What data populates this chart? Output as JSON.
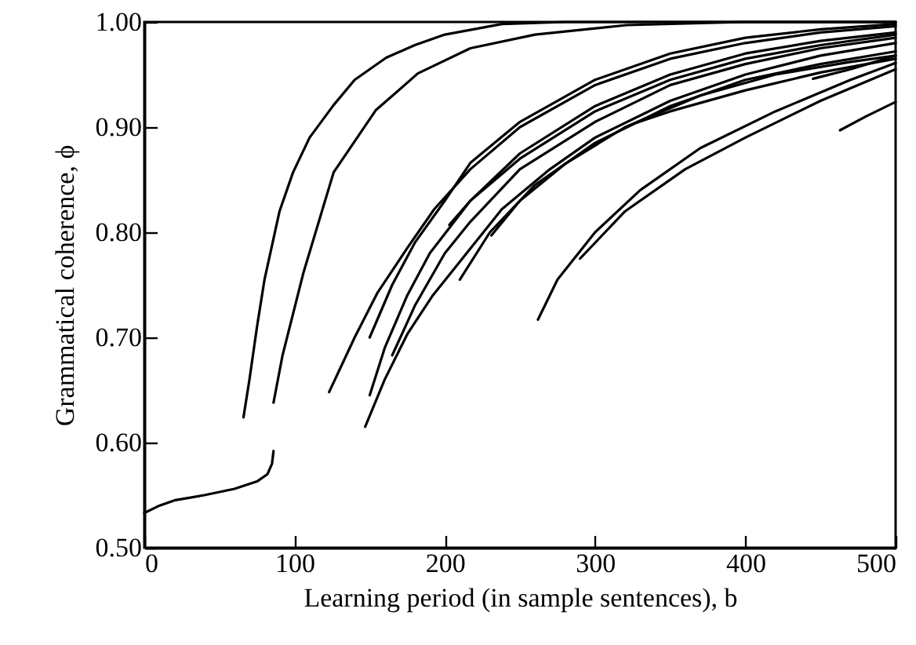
{
  "chart_data": {
    "type": "line",
    "xlabel": "Learning period (in sample sentences), b",
    "ylabel": "Grammatical coherence, ϕ",
    "xlim": [
      0,
      500
    ],
    "xticks": [
      0,
      100,
      200,
      300,
      400,
      500
    ],
    "ylim": [
      0.5,
      1.0
    ],
    "yticks": [
      {
        "value": 0.5,
        "label": "0.50"
      },
      {
        "value": 0.6,
        "label": "0.60"
      },
      {
        "value": 0.7,
        "label": "0.70"
      },
      {
        "value": 0.8,
        "label": "0.80"
      },
      {
        "value": 0.9,
        "label": "0.90"
      },
      {
        "value": 1.0,
        "label": "1.00"
      }
    ],
    "series": [
      {
        "color": "#000000",
        "x": [
          0,
          10,
          20,
          40,
          60,
          75,
          82,
          85,
          86
        ],
        "values": [
          0.533,
          0.54,
          0.545,
          0.55,
          0.556,
          0.563,
          0.57,
          0.58,
          0.592
        ]
      },
      {
        "color": "#000000",
        "x": [
          66,
          70,
          75,
          80,
          90,
          99,
          110,
          126,
          140,
          161,
          180,
          200,
          238,
          280,
          500
        ],
        "values": [
          0.624,
          0.66,
          0.71,
          0.755,
          0.82,
          0.857,
          0.89,
          0.921,
          0.945,
          0.966,
          0.978,
          0.988,
          0.998,
          1.0,
          1.0
        ]
      },
      {
        "color": "#000000",
        "x": [
          86,
          92,
          106,
          126,
          154,
          182,
          217,
          260,
          321,
          400,
          500
        ],
        "values": [
          0.638,
          0.683,
          0.762,
          0.857,
          0.916,
          0.951,
          0.975,
          0.988,
          0.997,
          1.0,
          1.0
        ]
      },
      {
        "color": "#000000",
        "x": [
          123,
          140,
          155,
          175,
          193,
          217,
          250,
          300,
          350,
          400,
          450,
          500
        ],
        "values": [
          0.648,
          0.7,
          0.742,
          0.785,
          0.822,
          0.86,
          0.9,
          0.94,
          0.965,
          0.98,
          0.99,
          0.996
        ]
      },
      {
        "color": "#000000",
        "x": [
          147,
          160,
          175,
          192,
          210,
          238,
          270,
          300,
          350,
          400,
          450,
          500
        ],
        "values": [
          0.615,
          0.66,
          0.703,
          0.74,
          0.772,
          0.822,
          0.86,
          0.89,
          0.925,
          0.95,
          0.968,
          0.98
        ]
      },
      {
        "color": "#000000",
        "x": [
          150,
          165,
          180,
          200,
          217,
          250,
          300,
          350,
          400,
          450,
          500
        ],
        "values": [
          0.7,
          0.75,
          0.79,
          0.83,
          0.866,
          0.905,
          0.945,
          0.97,
          0.985,
          0.993,
          0.998
        ]
      },
      {
        "color": "#000000",
        "x": [
          150,
          160,
          175,
          190,
          217,
          250,
          300,
          350,
          400,
          450,
          500
        ],
        "values": [
          0.645,
          0.69,
          0.74,
          0.78,
          0.83,
          0.875,
          0.92,
          0.95,
          0.97,
          0.982,
          0.99
        ]
      },
      {
        "color": "#000000",
        "x": [
          165,
          180,
          200,
          217,
          250,
          300,
          350,
          400,
          450,
          500
        ],
        "values": [
          0.683,
          0.73,
          0.78,
          0.81,
          0.86,
          0.905,
          0.94,
          0.96,
          0.975,
          0.985
        ]
      },
      {
        "color": "#000000",
        "x": [
          203,
          217,
          250,
          300,
          350,
          400,
          450,
          500
        ],
        "values": [
          0.807,
          0.83,
          0.87,
          0.915,
          0.945,
          0.965,
          0.978,
          0.988
        ]
      },
      {
        "color": "#000000",
        "x": [
          210,
          230,
          260,
          300,
          350,
          400,
          450,
          500
        ],
        "values": [
          0.755,
          0.8,
          0.845,
          0.885,
          0.92,
          0.945,
          0.96,
          0.972
        ]
      },
      {
        "color": "#000000",
        "x": [
          231,
          250,
          280,
          320,
          370,
          420,
          470,
          500
        ],
        "values": [
          0.797,
          0.83,
          0.865,
          0.9,
          0.93,
          0.95,
          0.962,
          0.968
        ]
      },
      {
        "color": "#000000",
        "x": [
          262,
          275,
          300,
          330,
          370,
          420,
          470,
          500
        ],
        "values": [
          0.717,
          0.755,
          0.8,
          0.84,
          0.88,
          0.915,
          0.945,
          0.961
        ]
      },
      {
        "color": "#000000",
        "x": [
          290,
          320,
          360,
          400,
          450,
          500
        ],
        "values": [
          0.775,
          0.82,
          0.86,
          0.89,
          0.925,
          0.955
        ]
      },
      {
        "color": "#000000",
        "x": [
          327,
          350,
          400,
          450,
          500
        ],
        "values": [
          0.904,
          0.915,
          0.935,
          0.952,
          0.965
        ]
      },
      {
        "color": "#000000",
        "x": [
          445,
          470,
          500
        ],
        "values": [
          0.946,
          0.955,
          0.968
        ]
      },
      {
        "color": "#000000",
        "x": [
          463,
          480,
          500
        ],
        "values": [
          0.897,
          0.91,
          0.924
        ]
      }
    ]
  }
}
